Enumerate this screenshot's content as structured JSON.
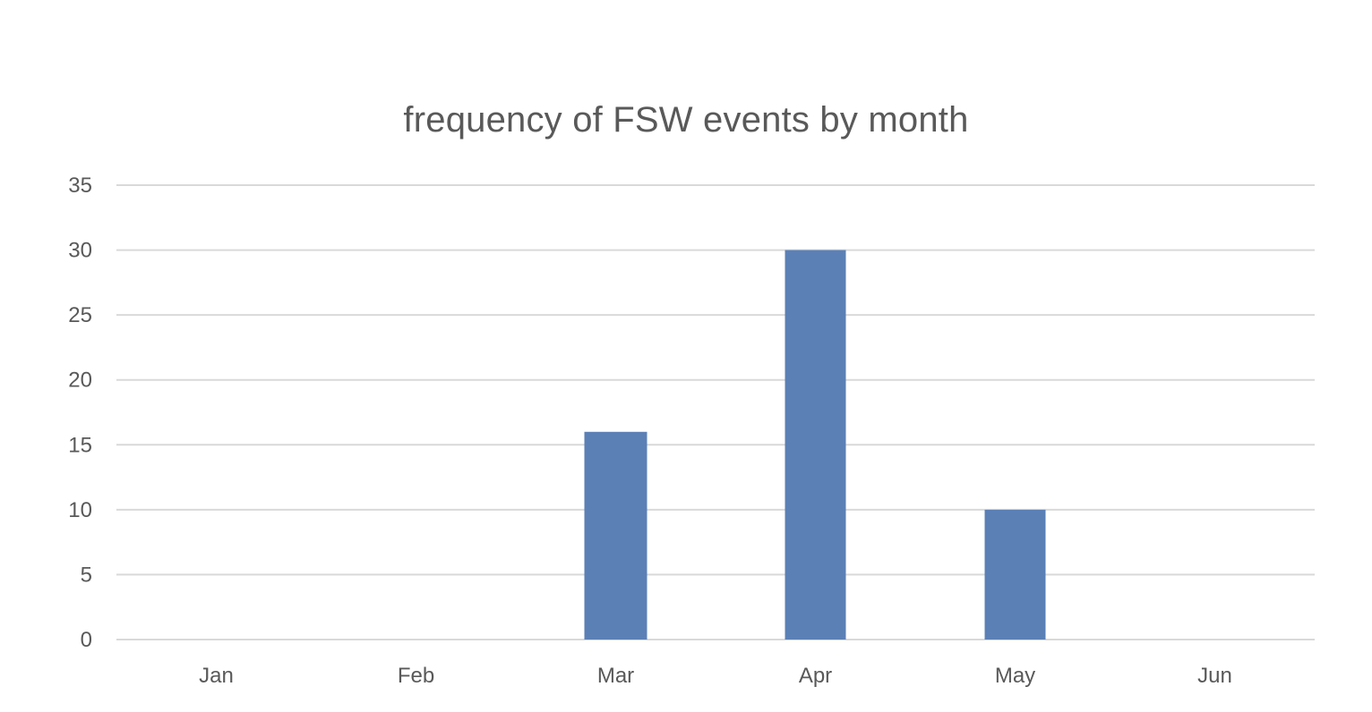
{
  "chart_data": {
    "type": "bar",
    "title": "frequency of FSW events by month",
    "xlabel": "",
    "ylabel": "",
    "categories": [
      "Jan",
      "Feb",
      "Mar",
      "Apr",
      "May",
      "Jun"
    ],
    "values": [
      0,
      0,
      16,
      30,
      10,
      0
    ],
    "ylim": [
      0,
      35
    ],
    "yticks": [
      "0",
      "5",
      "10",
      "15",
      "20",
      "25",
      "30",
      "35"
    ],
    "grid": true,
    "legend": "none",
    "bar_color": "#5b80b6",
    "grid_color": "#d9d9d9",
    "text_color": "#595959"
  }
}
